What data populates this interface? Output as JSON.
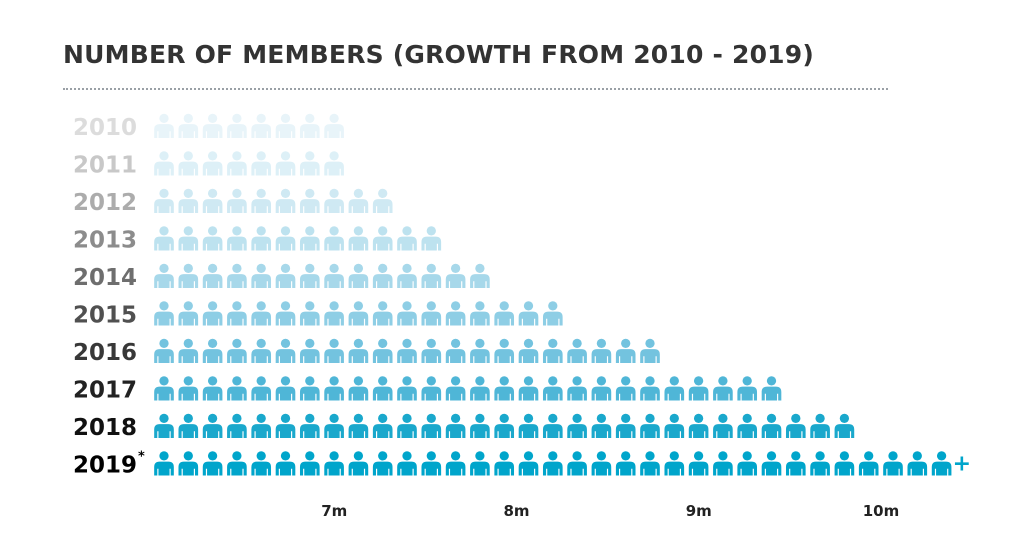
{
  "chart_data": {
    "type": "pictograph",
    "title": "NUMBER OF MEMBERS (GROWTH FROM 2010 - 2019)",
    "categories": [
      "2010",
      "2011",
      "2012",
      "2013",
      "2014",
      "2015",
      "2016",
      "2017",
      "2018",
      "2019"
    ],
    "icon_counts": [
      8,
      8,
      10,
      12,
      14,
      17,
      21,
      26,
      29,
      33
    ],
    "footnote_marks": {
      "2019": "*"
    },
    "overflow_marks": {
      "2019": "+"
    },
    "x_ticks": [
      {
        "label": "7m",
        "icon_position": 7.5
      },
      {
        "label": "8m",
        "icon_position": 15
      },
      {
        "label": "9m",
        "icon_position": 22.5
      },
      {
        "label": "10m",
        "icon_position": 30
      }
    ],
    "icon": "person-icon",
    "colors": {
      "icons": [
        "#e8f4f9",
        "#ddf0f7",
        "#cfe9f3",
        "#bde2ef",
        "#a7d8ea",
        "#8ecee5",
        "#73c3df",
        "#4fb6d7",
        "#1aa8cc",
        "#00a5cb"
      ],
      "labels": [
        "#dcdcdc",
        "#c8c8c8",
        "#acacac",
        "#8c8c8c",
        "#6e6e6e",
        "#505050",
        "#383838",
        "#222222",
        "#111111",
        "#000000"
      ],
      "accent": "#00a5cb"
    }
  }
}
